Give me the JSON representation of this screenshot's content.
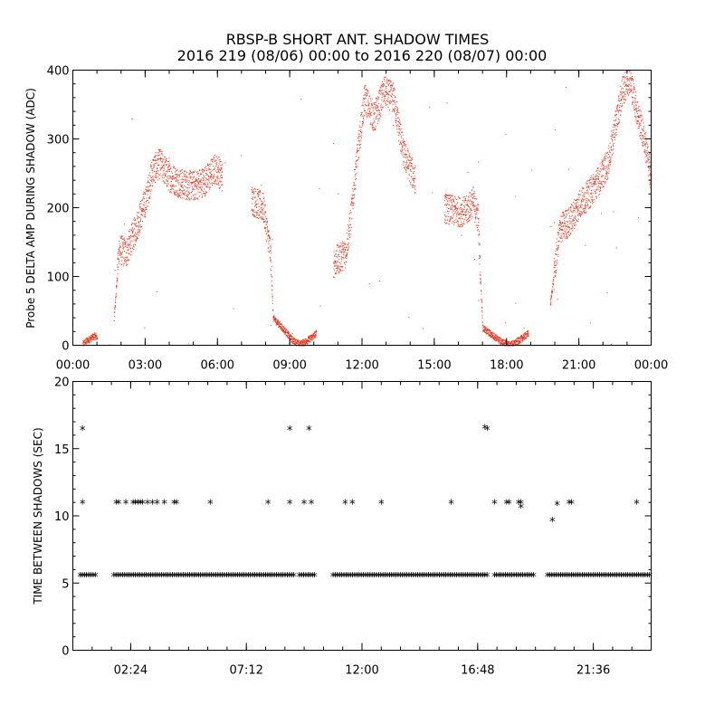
{
  "page": {
    "title_line1": "RBSP-B SHORT ANT. SHADOW TIMES",
    "title_line2": "2016 219 (08/06) 00:00 to 2016 220 (08/07) 00:00"
  },
  "chart_data": [
    {
      "type": "scatter",
      "ylabel": "Probe 5 DELTA AMP DURING SHADOW (ADC)",
      "xlabel": "",
      "x_unit": "hours",
      "xlim": [
        0,
        24
      ],
      "ylim": [
        0,
        400
      ],
      "yticks": [
        0,
        100,
        200,
        300,
        400
      ],
      "xticks": [
        {
          "value": 0,
          "label": "00:00"
        },
        {
          "value": 3,
          "label": "03:00"
        },
        {
          "value": 6,
          "label": "06:00"
        },
        {
          "value": 9,
          "label": "09:00"
        },
        {
          "value": 12,
          "label": "12:00"
        },
        {
          "value": 15,
          "label": "15:00"
        },
        {
          "value": 18,
          "label": "18:00"
        },
        {
          "value": 21,
          "label": "21:00"
        },
        {
          "value": 24,
          "label": "00:00"
        }
      ],
      "color": "#e8331a",
      "series": [
        {
          "profile": [
            [
              0.4,
              2
            ],
            [
              0.6,
              8
            ],
            [
              0.9,
              14
            ],
            [
              1.0,
              12
            ],
            [
              1.7,
              40
            ],
            [
              1.9,
              140
            ],
            [
              2.2,
              135
            ],
            [
              2.6,
              170
            ],
            [
              3.0,
              210
            ],
            [
              3.3,
              255
            ],
            [
              3.6,
              265
            ],
            [
              4.0,
              245
            ],
            [
              4.5,
              235
            ],
            [
              5.0,
              232
            ],
            [
              5.5,
              240
            ],
            [
              5.9,
              258
            ],
            [
              6.2,
              245
            ],
            [
              6.8,
              225
            ],
            [
              7.4,
              212
            ],
            [
              7.9,
              200
            ],
            [
              8.2,
              130
            ],
            [
              8.3,
              40
            ],
            [
              8.7,
              25
            ],
            [
              9.1,
              8
            ],
            [
              9.4,
              2
            ],
            [
              9.6,
              5
            ],
            [
              9.9,
              12
            ],
            [
              10.1,
              18
            ],
            [
              10.8,
              120
            ],
            [
              11.3,
              135
            ],
            [
              11.5,
              180
            ],
            [
              11.8,
              280
            ],
            [
              12.1,
              360
            ],
            [
              12.5,
              330
            ],
            [
              12.9,
              370
            ],
            [
              13.3,
              360
            ],
            [
              13.7,
              280
            ],
            [
              14.2,
              240
            ],
            [
              14.8,
              220
            ],
            [
              15.4,
              200
            ],
            [
              15.9,
              195
            ],
            [
              16.3,
              195
            ],
            [
              16.6,
              210
            ],
            [
              16.8,
              185
            ],
            [
              17.0,
              25
            ],
            [
              17.4,
              15
            ],
            [
              17.8,
              5
            ],
            [
              18.1,
              1
            ],
            [
              18.3,
              3
            ],
            [
              18.6,
              10
            ],
            [
              18.9,
              18
            ],
            [
              19.8,
              60
            ],
            [
              20.2,
              170
            ],
            [
              20.6,
              180
            ],
            [
              21.0,
              205
            ],
            [
              21.4,
              220
            ],
            [
              21.8,
              240
            ],
            [
              22.2,
              265
            ],
            [
              22.5,
              320
            ],
            [
              22.8,
              370
            ],
            [
              23.1,
              390
            ],
            [
              23.4,
              340
            ],
            [
              23.7,
              300
            ],
            [
              24.0,
              240
            ]
          ]
        }
      ]
    },
    {
      "type": "scatter",
      "ylabel": "TIME BETWEEN SHADOWS (SEC)",
      "xlabel": "",
      "x_unit": "hours",
      "xlim": [
        0,
        24
      ],
      "ylim": [
        0,
        20
      ],
      "yticks": [
        0,
        5,
        10,
        15,
        20
      ],
      "xticks": [
        {
          "value": 2.4,
          "label": "02:24"
        },
        {
          "value": 7.2,
          "label": "07:12"
        },
        {
          "value": 12.0,
          "label": "12:00"
        },
        {
          "value": 16.8,
          "label": "16:48"
        },
        {
          "value": 21.6,
          "label": "21:36"
        }
      ],
      "marker": "*",
      "color": "#000000",
      "series": [
        {
          "baseline_segments": [
            [
              0.3,
              1.0
            ],
            [
              1.7,
              9.2
            ],
            [
              9.4,
              10.1
            ],
            [
              10.8,
              17.2
            ],
            [
              17.5,
              19.2
            ],
            [
              19.7,
              24.0
            ]
          ],
          "baseline_value": 5.5,
          "points": [
            [
              0.4,
              16.4
            ],
            [
              0.4,
              10.9
            ],
            [
              1.8,
              10.9
            ],
            [
              1.9,
              10.9
            ],
            [
              2.2,
              10.9
            ],
            [
              2.5,
              10.9
            ],
            [
              2.6,
              10.9
            ],
            [
              2.7,
              10.9
            ],
            [
              2.8,
              10.9
            ],
            [
              2.9,
              10.9
            ],
            [
              3.1,
              10.9
            ],
            [
              3.3,
              10.9
            ],
            [
              3.5,
              10.9
            ],
            [
              3.8,
              10.9
            ],
            [
              4.2,
              10.9
            ],
            [
              4.3,
              10.9
            ],
            [
              5.7,
              10.9
            ],
            [
              8.1,
              10.9
            ],
            [
              9.0,
              16.4
            ],
            [
              9.0,
              10.9
            ],
            [
              9.6,
              10.9
            ],
            [
              9.8,
              16.4
            ],
            [
              9.9,
              10.9
            ],
            [
              11.3,
              10.9
            ],
            [
              11.6,
              10.9
            ],
            [
              12.8,
              10.9
            ],
            [
              15.7,
              10.9
            ],
            [
              17.1,
              16.5
            ],
            [
              17.2,
              16.4
            ],
            [
              17.5,
              10.9
            ],
            [
              18.0,
              10.9
            ],
            [
              18.1,
              10.9
            ],
            [
              18.5,
              10.9
            ],
            [
              18.6,
              10.9
            ],
            [
              18.6,
              10.6
            ],
            [
              19.9,
              9.6
            ],
            [
              20.1,
              10.8
            ],
            [
              20.6,
              10.9
            ],
            [
              20.7,
              10.9
            ],
            [
              23.4,
              10.9
            ]
          ]
        }
      ]
    }
  ]
}
